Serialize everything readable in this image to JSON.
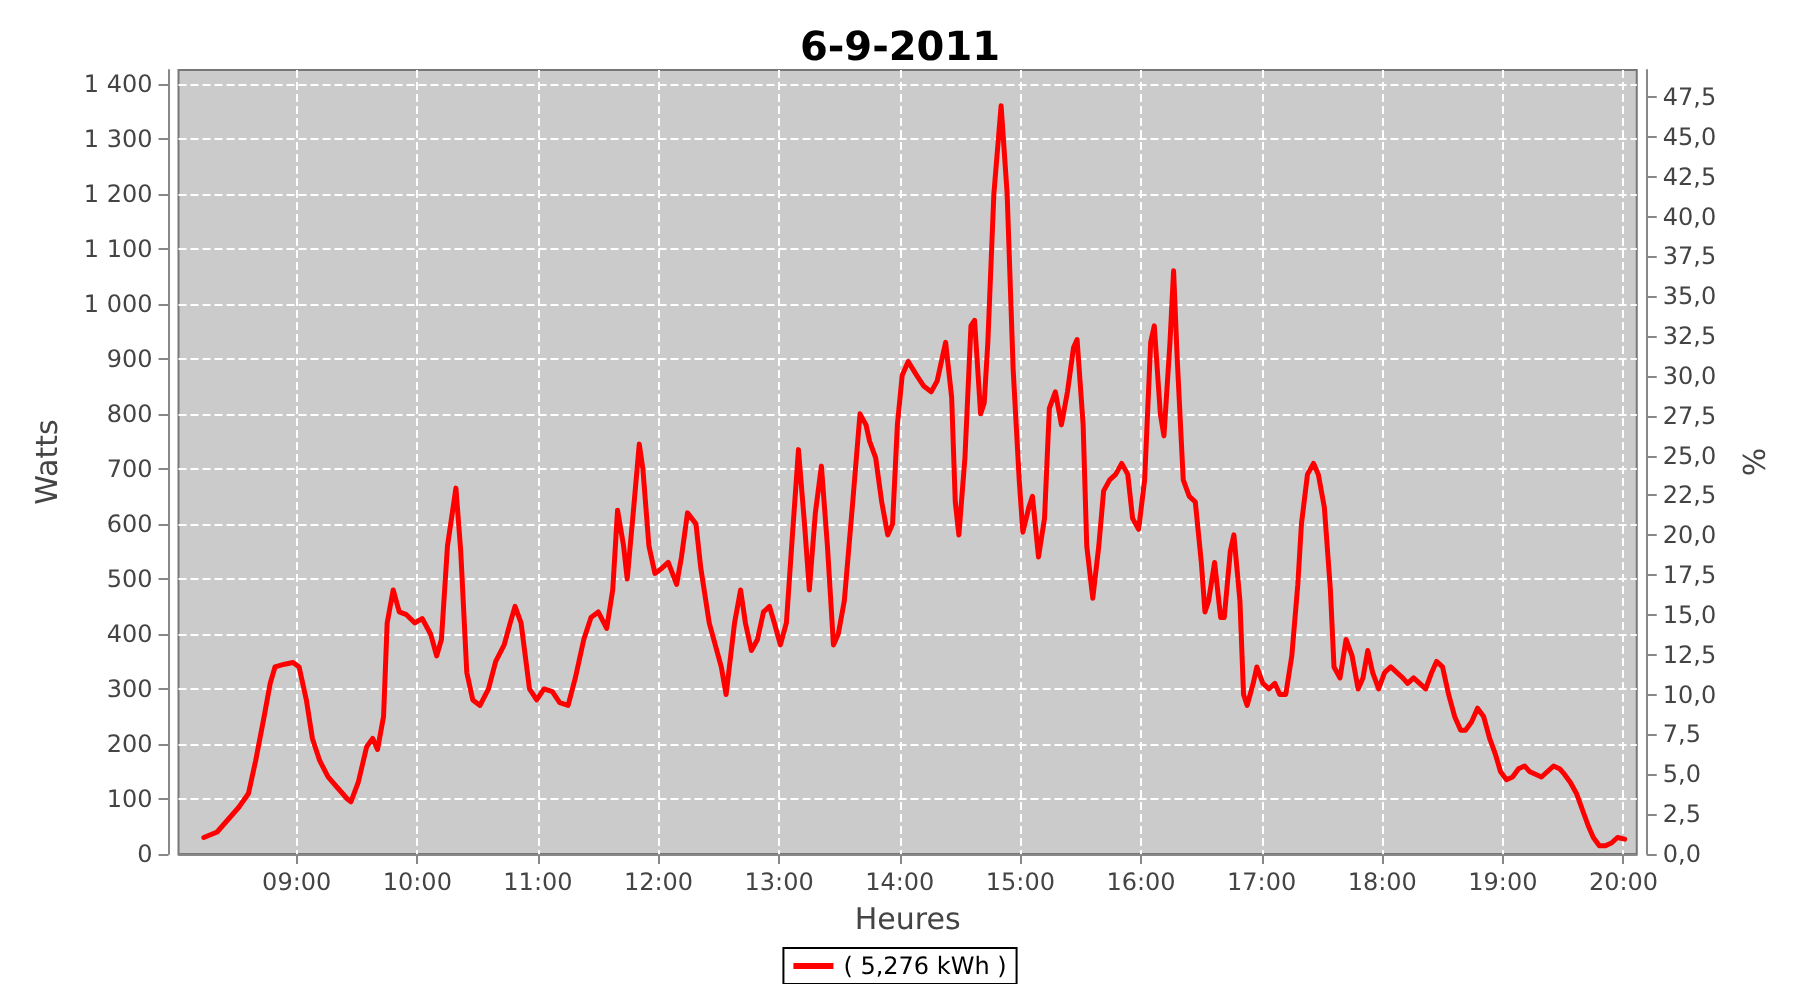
{
  "chart_data": {
    "type": "line",
    "title": "6-9-2011",
    "xlabel": "Heures",
    "ylabel": "Watts",
    "y2label": "%",
    "xlim": [
      8.02,
      20.11
    ],
    "ylim": [
      0,
      1425
    ],
    "y2lim": [
      0,
      49.2
    ],
    "xticks": [
      {
        "value": 9,
        "label": "09:00"
      },
      {
        "value": 10,
        "label": "10:00"
      },
      {
        "value": 11,
        "label": "11:00"
      },
      {
        "value": 12,
        "label": "12:00"
      },
      {
        "value": 13,
        "label": "13:00"
      },
      {
        "value": 14,
        "label": "14:00"
      },
      {
        "value": 15,
        "label": "15:00"
      },
      {
        "value": 16,
        "label": "16:00"
      },
      {
        "value": 17,
        "label": "17:00"
      },
      {
        "value": 18,
        "label": "18:00"
      },
      {
        "value": 19,
        "label": "19:00"
      },
      {
        "value": 20,
        "label": "20:00"
      }
    ],
    "yticks": [
      0,
      100,
      200,
      300,
      400,
      500,
      600,
      700,
      800,
      900,
      {
        "value": 1000,
        "label": "1 000"
      },
      {
        "value": 1100,
        "label": "1 100"
      },
      {
        "value": 1200,
        "label": "1 200"
      },
      {
        "value": 1300,
        "label": "1 300"
      },
      {
        "value": 1400,
        "label": "1 400"
      }
    ],
    "y2ticks": [
      {
        "value": 0,
        "label": "0,0"
      },
      {
        "value": 2.5,
        "label": "2,5"
      },
      {
        "value": 5,
        "label": "5,0"
      },
      {
        "value": 7.5,
        "label": "7,5"
      },
      {
        "value": 10,
        "label": "10,0"
      },
      {
        "value": 12.5,
        "label": "12,5"
      },
      {
        "value": 15,
        "label": "15,0"
      },
      {
        "value": 17.5,
        "label": "17,5"
      },
      {
        "value": 20,
        "label": "20,0"
      },
      {
        "value": 22.5,
        "label": "22,5"
      },
      {
        "value": 25,
        "label": "25,0"
      },
      {
        "value": 27.5,
        "label": "27,5"
      },
      {
        "value": 30,
        "label": "30,0"
      },
      {
        "value": 32.5,
        "label": "32,5"
      },
      {
        "value": 35,
        "label": "35,0"
      },
      {
        "value": 37.5,
        "label": "37,5"
      },
      {
        "value": 40,
        "label": "40,0"
      },
      {
        "value": 42.5,
        "label": "42,5"
      },
      {
        "value": 45,
        "label": "45,0"
      },
      {
        "value": 47.5,
        "label": "47,5"
      }
    ],
    "grid": true,
    "legend": "bottom",
    "marker": "none",
    "line_style": "solid",
    "series": [
      {
        "name": "( 5,276 kWh )",
        "color": "#ff0000",
        "x": [
          8.23,
          8.34,
          8.42,
          8.52,
          8.6,
          8.66,
          8.73,
          8.78,
          8.82,
          8.9,
          8.97,
          9.02,
          9.08,
          9.13,
          9.19,
          9.26,
          9.34,
          9.42,
          9.45,
          9.51,
          9.58,
          9.63,
          9.67,
          9.72,
          9.75,
          9.8,
          9.85,
          9.91,
          9.98,
          10.04,
          10.11,
          10.16,
          10.2,
          10.25,
          10.32,
          10.36,
          10.41,
          10.46,
          10.52,
          10.59,
          10.65,
          10.72,
          10.77,
          10.81,
          10.86,
          10.93,
          10.99,
          11.05,
          11.12,
          11.18,
          11.25,
          11.31,
          11.38,
          11.44,
          11.5,
          11.57,
          11.62,
          11.66,
          11.71,
          11.74,
          11.79,
          11.84,
          11.87,
          11.92,
          11.97,
          12.03,
          12.08,
          12.15,
          12.19,
          12.24,
          12.31,
          12.35,
          12.42,
          12.47,
          12.52,
          12.56,
          12.63,
          12.68,
          12.72,
          12.77,
          12.82,
          12.87,
          12.92,
          12.96,
          13.01,
          13.06,
          13.11,
          13.16,
          13.21,
          13.25,
          13.3,
          13.35,
          13.4,
          13.45,
          13.49,
          13.54,
          13.61,
          13.67,
          13.72,
          13.75,
          13.8,
          13.85,
          13.9,
          13.94,
          13.98,
          14.02,
          14.07,
          14.14,
          14.2,
          14.26,
          14.31,
          14.38,
          14.43,
          14.46,
          14.49,
          14.54,
          14.59,
          14.62,
          14.67,
          14.7,
          14.73,
          14.78,
          14.84,
          14.89,
          14.94,
          14.99,
          15.02,
          15.07,
          15.1,
          15.15,
          15.2,
          15.24,
          15.29,
          15.34,
          15.39,
          15.44,
          15.47,
          15.52,
          15.55,
          15.6,
          15.65,
          15.69,
          15.74,
          15.79,
          15.84,
          15.89,
          15.93,
          15.98,
          16.03,
          16.08,
          16.11,
          16.16,
          16.19,
          16.24,
          16.27,
          16.3,
          16.35,
          16.4,
          16.45,
          16.5,
          16.53,
          16.56,
          16.61,
          16.66,
          16.69,
          16.74,
          16.77,
          16.82,
          16.85,
          16.88,
          16.93,
          16.96,
          17.01,
          17.06,
          17.11,
          17.15,
          17.2,
          17.25,
          17.3,
          17.33,
          17.38,
          17.43,
          17.47,
          17.52,
          17.57,
          17.6,
          17.65,
          17.7,
          17.75,
          17.8,
          17.84,
          17.88,
          17.92,
          17.97,
          18.02,
          18.07,
          18.12,
          18.17,
          18.21,
          18.26,
          18.31,
          18.36,
          18.41,
          18.45,
          18.5,
          18.55,
          18.6,
          18.65,
          18.69,
          18.74,
          18.79,
          18.84,
          18.89,
          18.94,
          18.98,
          19.03,
          19.08,
          19.13,
          19.18,
          19.22,
          19.27,
          19.32,
          19.37,
          19.42,
          19.47,
          19.51,
          19.56,
          19.61,
          19.66,
          19.71,
          19.75,
          19.8,
          19.85,
          19.9,
          19.95,
          20.01
        ],
        "values": [
          30,
          40,
          60,
          85,
          110,
          170,
          250,
          310,
          340,
          345,
          348,
          340,
          280,
          210,
          170,
          140,
          120,
          100,
          95,
          130,
          195,
          210,
          190,
          250,
          420,
          480,
          440,
          435,
          420,
          428,
          400,
          360,
          390,
          560,
          665,
          550,
          330,
          280,
          270,
          300,
          350,
          380,
          420,
          450,
          420,
          300,
          280,
          300,
          295,
          275,
          270,
          320,
          390,
          430,
          440,
          410,
          480,
          625,
          560,
          500,
          620,
          745,
          700,
          560,
          510,
          520,
          530,
          490,
          540,
          620,
          600,
          520,
          420,
          380,
          340,
          290,
          420,
          480,
          420,
          370,
          390,
          440,
          450,
          420,
          380,
          420,
          580,
          735,
          600,
          480,
          620,
          705,
          560,
          380,
          400,
          460,
          640,
          800,
          780,
          750,
          720,
          640,
          580,
          600,
          780,
          870,
          895,
          870,
          850,
          840,
          860,
          930,
          830,
          640,
          580,
          720,
          960,
          970,
          800,
          820,
          930,
          1200,
          1360,
          1200,
          880,
          680,
          585,
          630,
          650,
          540,
          610,
          810,
          840,
          780,
          840,
          920,
          935,
          780,
          560,
          465,
          560,
          660,
          680,
          690,
          710,
          690,
          610,
          590,
          680,
          930,
          960,
          800,
          760,
          930,
          1060,
          900,
          680,
          650,
          640,
          530,
          440,
          460,
          530,
          430,
          430,
          550,
          580,
          460,
          290,
          270,
          310,
          340,
          310,
          300,
          310,
          290,
          290,
          360,
          490,
          600,
          690,
          710,
          690,
          630,
          480,
          340,
          320,
          390,
          360,
          300,
          320,
          370,
          330,
          300,
          330,
          340,
          330,
          320,
          310,
          320,
          310,
          300,
          330,
          350,
          340,
          290,
          250,
          225,
          225,
          240,
          265,
          250,
          210,
          180,
          150,
          135,
          140,
          155,
          160,
          150,
          145,
          140,
          150,
          160,
          155,
          145,
          130,
          110,
          80,
          50,
          30,
          15,
          15,
          20,
          30,
          27
        ]
      }
    ]
  }
}
